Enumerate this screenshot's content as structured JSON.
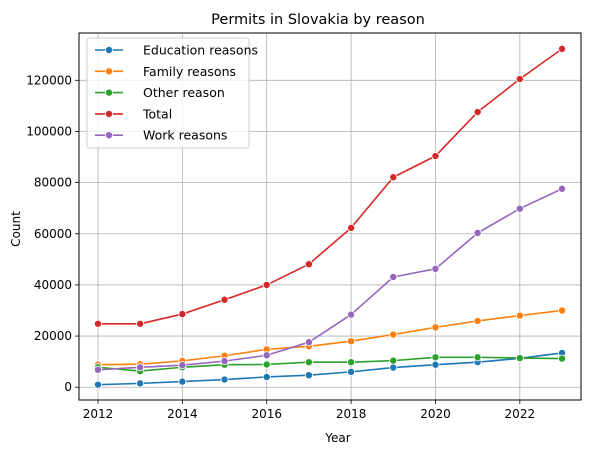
{
  "chart_data": {
    "type": "line",
    "title": "Permits in Slovakia by reason",
    "xlabel": "Year",
    "ylabel": "Count",
    "xlim": [
      2011.55,
      2023.45
    ],
    "ylim": [
      -5000,
      138500
    ],
    "x_ticks": [
      2012,
      2014,
      2016,
      2018,
      2020,
      2022
    ],
    "y_ticks": [
      0,
      20000,
      40000,
      60000,
      80000,
      100000,
      120000
    ],
    "grid": true,
    "legend_position": "upper-left",
    "x": [
      2012,
      2013,
      2014,
      2015,
      2016,
      2017,
      2018,
      2019,
      2020,
      2021,
      2022,
      2023
    ],
    "series": [
      {
        "name": "Education reasons",
        "color": "#1f77b4",
        "values": [
          1000,
          1500,
          2200,
          3000,
          4000,
          4700,
          6000,
          7700,
          8800,
          9800,
          11300,
          13400
        ]
      },
      {
        "name": "Family reasons",
        "color": "#ff7f0e",
        "values": [
          8800,
          9000,
          10300,
          12300,
          14800,
          16000,
          18000,
          20600,
          23400,
          25900,
          28000,
          30000
        ]
      },
      {
        "name": "Other reason",
        "color": "#2ca02c",
        "values": [
          7800,
          6300,
          7800,
          8800,
          8900,
          9800,
          9800,
          10400,
          11700,
          11700,
          11400,
          11200
        ]
      },
      {
        "name": "Total",
        "color": "#d62728",
        "values": [
          24800,
          24800,
          28600,
          34200,
          40000,
          48100,
          62300,
          82100,
          90400,
          107600,
          120500,
          132300
        ]
      },
      {
        "name": "Work reasons",
        "color": "#9467bd",
        "values": [
          6800,
          7800,
          8600,
          10200,
          12500,
          17600,
          28400,
          43100,
          46300,
          60300,
          69800,
          77600
        ]
      }
    ]
  }
}
